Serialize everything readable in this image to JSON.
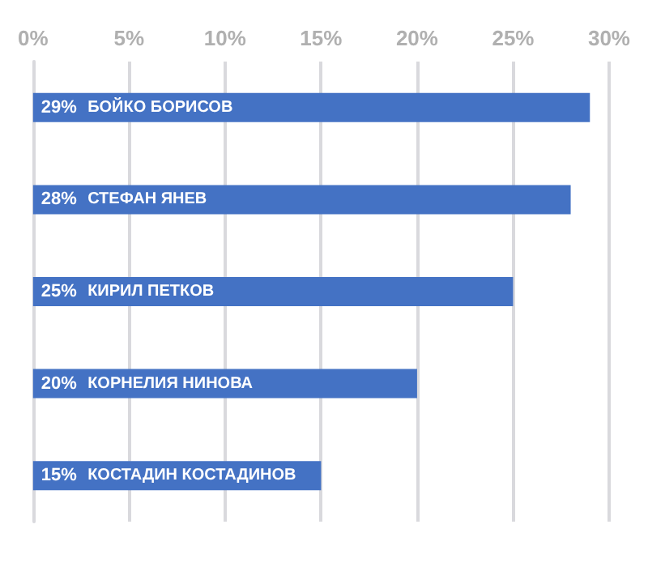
{
  "chart_data": {
    "type": "bar",
    "orientation": "horizontal",
    "categories": [
      "БОЙКО БОРИСОВ",
      "СТЕФАН ЯНЕВ",
      "КИРИЛ ПЕТКОВ",
      "КОРНЕЛИЯ НИНОВА",
      "КОСТАДИН КОСТАДИНОВ"
    ],
    "values": [
      29,
      28,
      25,
      20,
      15
    ],
    "value_labels": [
      "29%",
      "28%",
      "25%",
      "20%",
      "15%"
    ],
    "color": "#4472c4",
    "xlim": [
      0,
      30
    ],
    "xticks": [
      {
        "value": 0,
        "label": "0%"
      },
      {
        "value": 5,
        "label": "5%"
      },
      {
        "value": 10,
        "label": "10%"
      },
      {
        "value": 15,
        "label": "15%"
      },
      {
        "value": 20,
        "label": "20%"
      },
      {
        "value": 25,
        "label": "25%"
      },
      {
        "value": 30,
        "label": "30%"
      }
    ],
    "grid": "x",
    "tick_labels": "x"
  }
}
